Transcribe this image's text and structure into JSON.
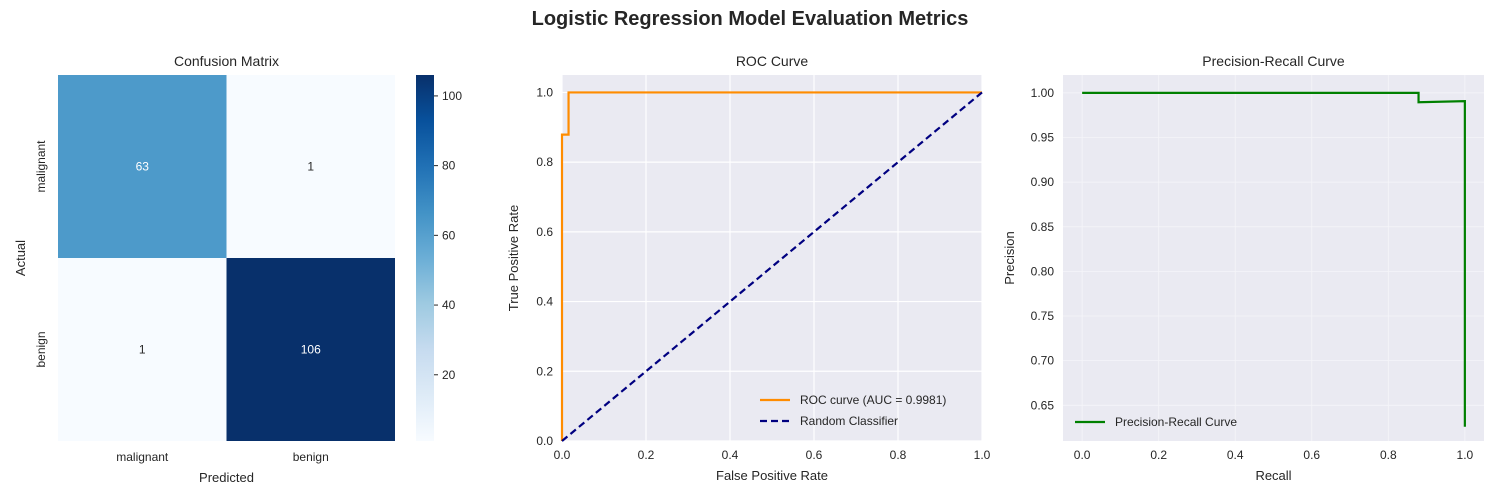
{
  "figure": {
    "title": "Logistic Regression Model Evaluation Metrics"
  },
  "chart_data": [
    {
      "type": "heatmap",
      "title": "Confusion Matrix",
      "xlabel": "Predicted",
      "ylabel": "Actual",
      "x_categories": [
        "malignant",
        "benign"
      ],
      "y_categories": [
        "malignant",
        "benign"
      ],
      "matrix": [
        [
          63,
          1
        ],
        [
          1,
          106
        ]
      ],
      "colorbar": {
        "min": 1,
        "max": 106,
        "ticks": [
          20,
          40,
          60,
          80,
          100
        ]
      },
      "colors": {
        "low": "#f7fbff",
        "mid": "#4f9bcb",
        "high": "#08306b"
      }
    },
    {
      "type": "line",
      "title": "ROC Curve",
      "xlabel": "False Positive Rate",
      "ylabel": "True Positive Rate",
      "xlim": [
        0.0,
        1.0
      ],
      "ylim": [
        0.0,
        1.05
      ],
      "xticks": [
        "0.0",
        "0.2",
        "0.4",
        "0.6",
        "0.8",
        "1.0"
      ],
      "yticks": [
        "0.0",
        "0.2",
        "0.4",
        "0.6",
        "0.8",
        "1.0"
      ],
      "legend_position": "lower-right",
      "series": [
        {
          "name": "ROC curve (AUC = 0.9981)",
          "color": "#ff8c00",
          "style": "solid",
          "x": [
            0,
            0,
            0,
            0.0156,
            0.0156,
            1.0
          ],
          "y": [
            0,
            0.879,
            0.879,
            0.879,
            1.0,
            1.0
          ]
        },
        {
          "name": "Random Classifier",
          "color": "#000080",
          "style": "dashed",
          "x": [
            0,
            1
          ],
          "y": [
            0,
            1
          ]
        }
      ]
    },
    {
      "type": "line",
      "title": "Precision-Recall Curve",
      "xlabel": "Recall",
      "ylabel": "Precision",
      "xlim": [
        -0.05,
        1.05
      ],
      "ylim": [
        0.61,
        1.02
      ],
      "xticks": [
        "0.0",
        "0.2",
        "0.4",
        "0.6",
        "0.8",
        "1.0"
      ],
      "yticks": [
        "0.65",
        "0.70",
        "0.75",
        "0.80",
        "0.85",
        "0.90",
        "0.95",
        "1.00"
      ],
      "legend_position": "lower-left",
      "series": [
        {
          "name": "Precision-Recall Curve",
          "color": "#008000",
          "style": "solid",
          "x": [
            0,
            0.879,
            0.879,
            1.0,
            1.0
          ],
          "y": [
            1.0,
            1.0,
            0.9895,
            0.9907,
            0.626
          ]
        }
      ]
    }
  ]
}
